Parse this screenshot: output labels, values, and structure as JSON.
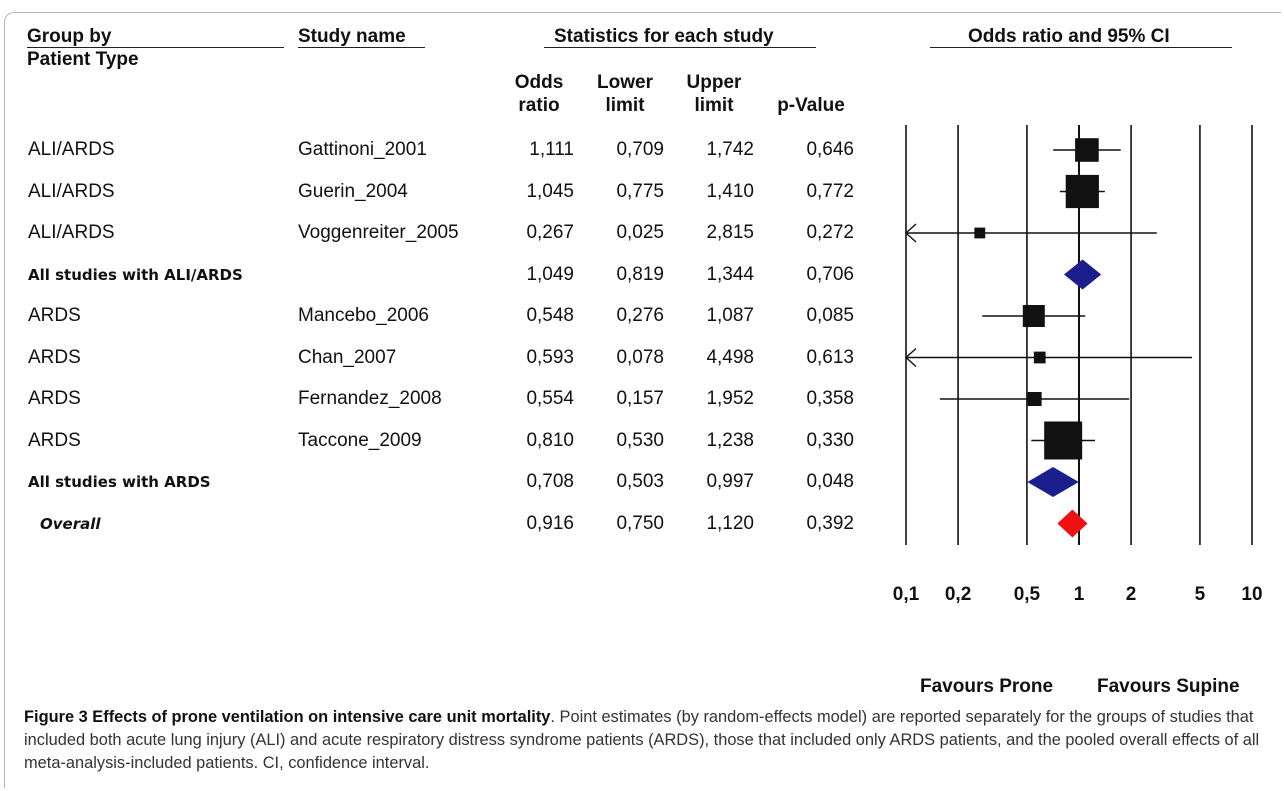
{
  "headers": {
    "group_line1": "Group by",
    "group_line2": "Patient Type",
    "study": "Study name",
    "stats": "Statistics for each study",
    "ci": "Odds ratio and 95% CI"
  },
  "columns": {
    "or_l1": "Odds",
    "or_l2": "ratio",
    "lo_l1": "Lower",
    "lo_l2": "limit",
    "up_l1": "Upper",
    "up_l2": "limit",
    "p": "p-Value"
  },
  "favours": {
    "left": "Favours Prone",
    "right": "Favours Supine"
  },
  "caption": {
    "title": "Figure 3 Effects of prone ventilation on intensive care unit mortality",
    "text": ". Point estimates (by random-effects model) are reported separately for the groups of studies that included both acute lung injury (ALI) and acute respiratory distress syndrome patients (ARDS), those that included only ARDS patients, and the pooled overall effects of all meta-analysis-included patients. CI, confidence interval."
  },
  "chart_data": {
    "type": "forest",
    "scale": "log",
    "xlim": [
      0.1,
      10
    ],
    "x_ticks": [
      0.1,
      0.2,
      0.5,
      1,
      2,
      5,
      10
    ],
    "x_tick_labels": [
      "0,1",
      "0,2",
      "0,5",
      "1",
      "2",
      "5",
      "10"
    ],
    "colors": {
      "study": "#111111",
      "subtotal": "#1a1f8c",
      "overall": "#ee1111"
    },
    "rows": [
      {
        "group": "ALI/ARDS",
        "study": "Gattinoni_2001",
        "or": "1,111",
        "lower": "0,709",
        "upper": "1,742",
        "p": "0,646",
        "or_v": 1.111,
        "lo_v": 0.709,
        "up_v": 1.742,
        "kind": "study",
        "weight": 0.55
      },
      {
        "group": "ALI/ARDS",
        "study": "Guerin_2004",
        "or": "1,045",
        "lower": "0,775",
        "upper": "1,410",
        "p": "0,772",
        "or_v": 1.045,
        "lo_v": 0.775,
        "up_v": 1.41,
        "kind": "study",
        "weight": 0.85
      },
      {
        "group": "ALI/ARDS",
        "study": "Voggenreiter_2005",
        "or": "0,267",
        "lower": "0,025",
        "upper": "2,815",
        "p": "0,272",
        "or_v": 0.267,
        "lo_v": 0.025,
        "up_v": 2.815,
        "kind": "study",
        "weight": 0.15
      },
      {
        "group": "All studies with ALI/ARDS",
        "study": "",
        "or": "1,049",
        "lower": "0,819",
        "upper": "1,344",
        "p": "0,706",
        "or_v": 1.049,
        "lo_v": 0.819,
        "up_v": 1.344,
        "kind": "subtotal"
      },
      {
        "group": "ARDS",
        "study": "Mancebo_2006",
        "or": "0,548",
        "lower": "0,276",
        "upper": "1,087",
        "p": "0,085",
        "or_v": 0.548,
        "lo_v": 0.276,
        "up_v": 1.087,
        "kind": "study",
        "weight": 0.5
      },
      {
        "group": "ARDS",
        "study": "Chan_2007",
        "or": "0,593",
        "lower": "0,078",
        "upper": "4,498",
        "p": "0,613",
        "or_v": 0.593,
        "lo_v": 0.078,
        "up_v": 4.498,
        "kind": "study",
        "weight": 0.18
      },
      {
        "group": "ARDS",
        "study": "Fernandez_2008",
        "or": "0,554",
        "lower": "0,157",
        "upper": "1,952",
        "p": "0,358",
        "or_v": 0.554,
        "lo_v": 0.157,
        "up_v": 1.952,
        "kind": "study",
        "weight": 0.25
      },
      {
        "group": "ARDS",
        "study": "Taccone_2009",
        "or": "0,810",
        "lower": "0,530",
        "upper": "1,238",
        "p": "0,330",
        "or_v": 0.81,
        "lo_v": 0.53,
        "up_v": 1.238,
        "kind": "study",
        "weight": 1.0
      },
      {
        "group": "All studies with  ARDS",
        "study": "",
        "or": "0,708",
        "lower": "0,503",
        "upper": "0,997",
        "p": "0,048",
        "or_v": 0.708,
        "lo_v": 0.503,
        "up_v": 0.997,
        "kind": "subtotal"
      },
      {
        "group": "Overall",
        "study": "",
        "or": "0,916",
        "lower": "0,750",
        "upper": "1,120",
        "p": "0,392",
        "or_v": 0.916,
        "lo_v": 0.75,
        "up_v": 1.12,
        "kind": "overall"
      }
    ]
  }
}
